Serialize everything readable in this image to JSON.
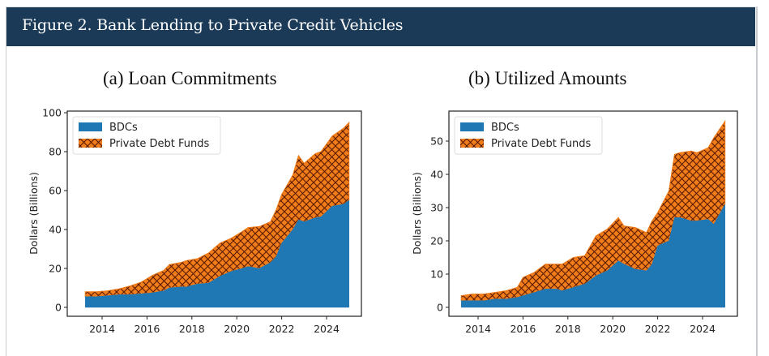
{
  "header": {
    "title": "Figure 2. Bank Lending to Private Credit Vehicles"
  },
  "colors": {
    "header_bg": "#1b3a57",
    "bdc": "#1f77b4",
    "pdf": "#f07c1a",
    "hatch": "#5a1a00"
  },
  "chart_data": [
    {
      "type": "area",
      "stacked": true,
      "title": "(a) Loan Commitments",
      "xlabel": "",
      "ylabel": "Dollars (Billions)",
      "xlim": [
        2012.5,
        2025.6
      ],
      "ylim": [
        0,
        100
      ],
      "xticks": [
        2014,
        2016,
        2018,
        2020,
        2022,
        2024
      ],
      "yticks": [
        0,
        20,
        40,
        60,
        80,
        100
      ],
      "legend": {
        "placement": "top-left",
        "entries": [
          "BDCs",
          "Private Debt Funds"
        ]
      },
      "x": [
        2013.25,
        2013.75,
        2014.25,
        2014.75,
        2015.25,
        2015.75,
        2016.25,
        2016.75,
        2017.0,
        2017.5,
        2017.75,
        2018.25,
        2018.75,
        2019.25,
        2019.75,
        2020.25,
        2020.5,
        2021.0,
        2021.5,
        2021.75,
        2022.0,
        2022.5,
        2022.75,
        2023.0,
        2023.5,
        2023.75,
        2024.25,
        2024.75,
        2025.0
      ],
      "series": [
        {
          "name": "BDCs",
          "values": [
            5.5,
            5.5,
            6,
            6.5,
            6.5,
            7,
            7.5,
            8.5,
            10,
            10.5,
            10.5,
            12,
            12.5,
            16,
            18.5,
            20,
            21,
            20,
            23,
            26,
            33,
            40,
            45,
            44,
            46,
            46.5,
            52,
            53,
            55
          ]
        },
        {
          "name": "Private Debt Funds",
          "values": [
            2.5,
            2.5,
            2.5,
            3,
            4.5,
            6,
            9,
            10.5,
            12,
            12.5,
            13.5,
            13,
            15.5,
            17,
            17,
            19,
            20,
            21.5,
            21,
            24,
            25,
            28,
            33,
            30,
            33,
            33.5,
            36,
            39,
            40
          ]
        }
      ]
    },
    {
      "type": "area",
      "stacked": true,
      "title": "(b) Utilized Amounts",
      "xlabel": "",
      "ylabel": "Dollars (Billions)",
      "xlim": [
        2012.5,
        2025.4
      ],
      "ylim": [
        0,
        59
      ],
      "xticks": [
        2014,
        2016,
        2018,
        2020,
        2022,
        2024
      ],
      "yticks": [
        0,
        10,
        20,
        30,
        40,
        50
      ],
      "legend": {
        "placement": "top-left",
        "entries": [
          "BDCs",
          "Private Debt Funds"
        ]
      },
      "x": [
        2013.25,
        2013.75,
        2014.25,
        2014.75,
        2015.25,
        2015.75,
        2016.0,
        2016.5,
        2017.0,
        2017.5,
        2017.75,
        2018.25,
        2018.75,
        2019.25,
        2019.75,
        2020.25,
        2020.5,
        2021.0,
        2021.5,
        2021.75,
        2022.0,
        2022.5,
        2022.75,
        2023.0,
        2023.5,
        2023.75,
        2024.25,
        2024.5,
        2025.0
      ],
      "series": [
        {
          "name": "BDCs",
          "values": [
            2,
            2,
            2,
            2.5,
            2.5,
            3,
            3.5,
            4.5,
            5.5,
            5.5,
            5,
            6,
            7,
            9.5,
            11,
            14,
            13,
            11.5,
            11,
            13,
            18.5,
            20,
            27,
            27,
            26,
            26,
            26.5,
            25,
            31
          ]
        },
        {
          "name": "Private Debt Funds",
          "values": [
            1.5,
            2,
            2,
            2,
            2.5,
            3,
            5.5,
            6,
            7.5,
            7.5,
            8,
            9,
            8.5,
            12,
            12.5,
            13,
            11.5,
            12.5,
            11.5,
            13,
            10,
            15,
            19,
            19.5,
            21,
            20.5,
            21.5,
            26,
            25
          ]
        }
      ]
    }
  ]
}
